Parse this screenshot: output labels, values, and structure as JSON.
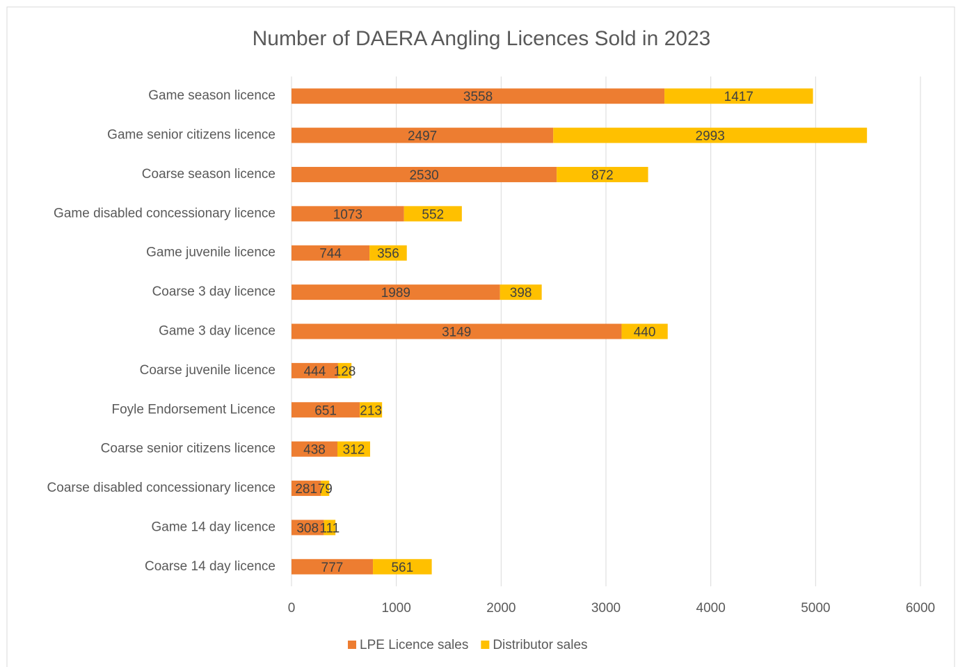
{
  "chart_data": {
    "type": "stacked_bar_horizontal",
    "title": "Number of DAERA Angling Licences Sold in 2023",
    "categories": [
      "Game season licence",
      "Game senior citizens licence",
      "Coarse season licence",
      "Game disabled concessionary licence",
      "Game juvenile licence",
      "Coarse 3 day licence",
      "Game 3 day licence",
      "Coarse juvenile licence",
      "Foyle Endorsement Licence",
      "Coarse senior citizens licence",
      "Coarse disabled concessionary licence",
      "Game 14 day licence",
      "Coarse 14 day licence"
    ],
    "series": [
      {
        "name": "LPE Licence sales",
        "color": "#ed7d31",
        "values": [
          3558,
          2497,
          2530,
          1073,
          744,
          1989,
          3149,
          444,
          651,
          438,
          281,
          308,
          777
        ]
      },
      {
        "name": "Distributor sales",
        "color": "#ffc000",
        "values": [
          1417,
          2993,
          872,
          552,
          356,
          398,
          440,
          128,
          213,
          312,
          79,
          111,
          561
        ]
      }
    ],
    "xlim": [
      0,
      6000
    ],
    "xticks": [
      0,
      1000,
      2000,
      3000,
      4000,
      5000,
      6000
    ],
    "grid": true,
    "legend": "bottom"
  }
}
